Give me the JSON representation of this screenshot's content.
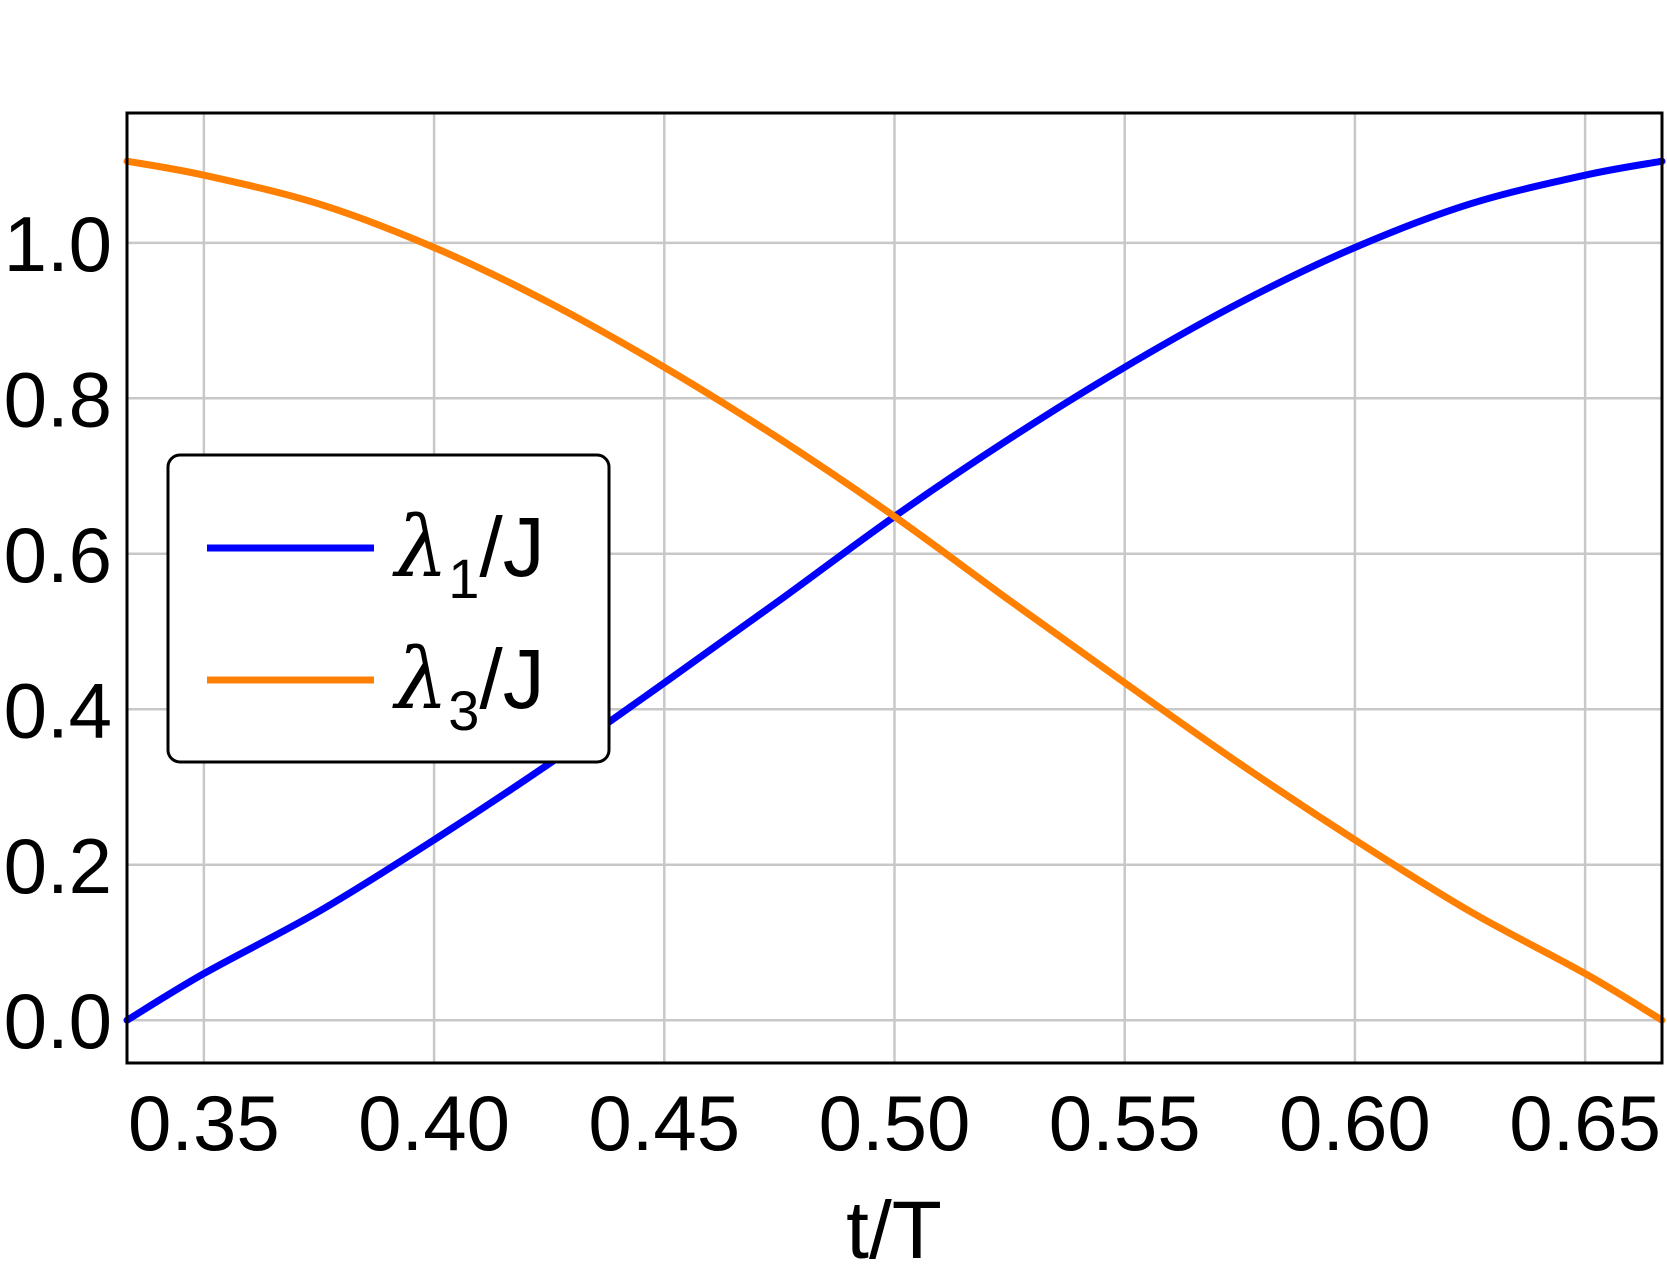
{
  "chart_data": {
    "type": "line",
    "title": "",
    "xlabel": "t/T",
    "ylabel": "",
    "xlim": [
      0.3333,
      0.6667
    ],
    "ylim": [
      -0.055,
      1.167
    ],
    "xticks": [
      0.35,
      0.4,
      0.45,
      0.5,
      0.55,
      0.6,
      0.65
    ],
    "xtick_labels": [
      "0.35",
      "0.40",
      "0.45",
      "0.50",
      "0.55",
      "0.60",
      "0.65"
    ],
    "yticks": [
      0.0,
      0.2,
      0.4,
      0.6,
      0.8,
      1.0
    ],
    "ytick_labels": [
      "0.0",
      "0.2",
      "0.4",
      "0.6",
      "0.8",
      "1.0"
    ],
    "grid": true,
    "legend_position": "left-middle",
    "x": [
      0.3333,
      0.35,
      0.375,
      0.4,
      0.425,
      0.45,
      0.475,
      0.5,
      0.525,
      0.55,
      0.575,
      0.6,
      0.625,
      0.65,
      0.6667
    ],
    "series": [
      {
        "name": "λ1/J",
        "symbol": "λ",
        "subscript": "1",
        "suffix": "/J",
        "color": "#0000ff",
        "values": [
          0.0,
          0.06,
          0.14,
          0.232,
          0.33,
          0.434,
          0.54,
          0.648,
          0.748,
          0.84,
          0.923,
          0.994,
          1.05,
          1.087,
          1.105
        ]
      },
      {
        "name": "λ3/J",
        "symbol": "λ",
        "subscript": "3",
        "suffix": "/J",
        "color": "#ff7f00",
        "values": [
          1.105,
          1.087,
          1.05,
          0.994,
          0.923,
          0.84,
          0.748,
          0.648,
          0.54,
          0.434,
          0.33,
          0.232,
          0.14,
          0.06,
          0.0
        ]
      }
    ]
  }
}
